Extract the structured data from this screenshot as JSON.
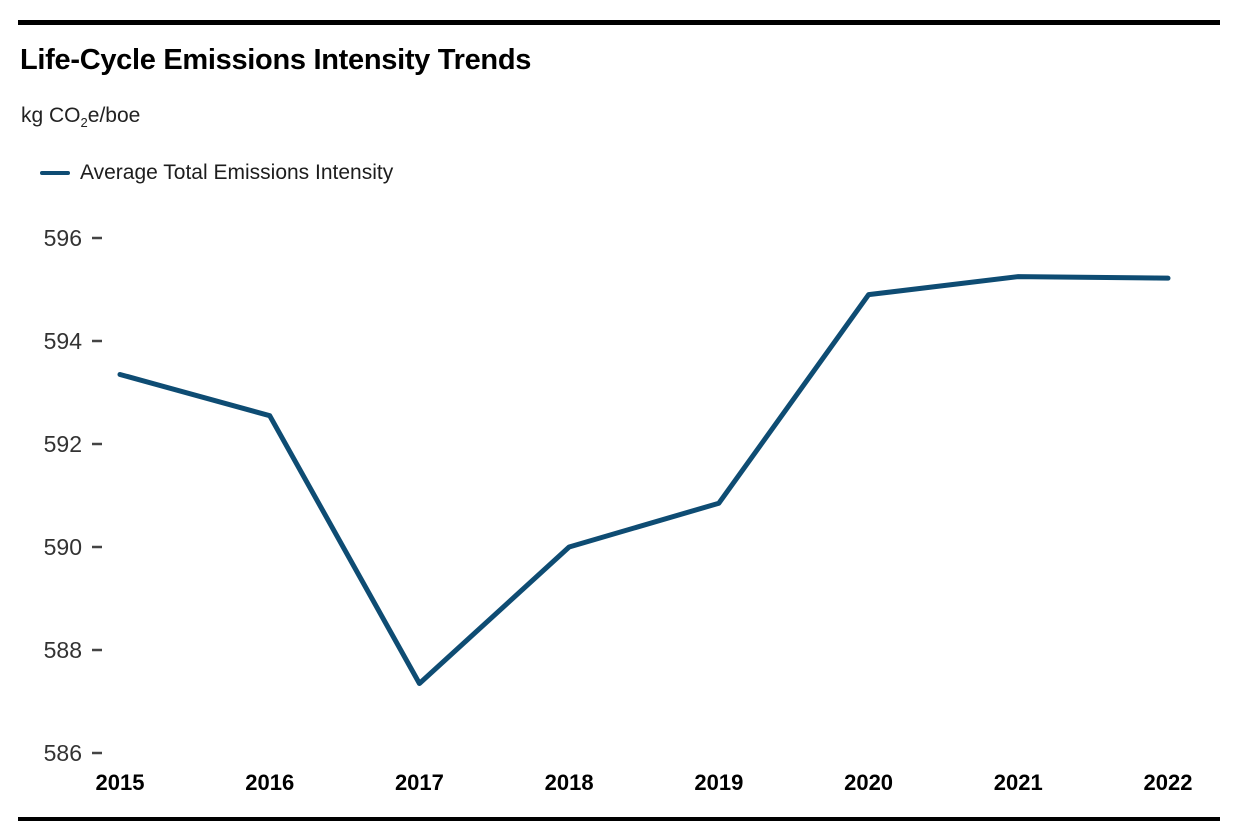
{
  "header": {
    "title": "Life-Cycle Emissions Intensity Trends",
    "unit_label": {
      "pre": "kg CO",
      "sub": "2",
      "post": "e/boe"
    }
  },
  "legend": {
    "series_label": "Average Total Emissions Intensity",
    "swatch_color": "#0e4c73"
  },
  "chart_data": {
    "type": "line",
    "title": "Life-Cycle Emissions Intensity Trends",
    "ylabel": "kg CO₂e/boe",
    "xlabel": "",
    "categories": [
      "2015",
      "2016",
      "2017",
      "2018",
      "2019",
      "2020",
      "2021",
      "2022"
    ],
    "series": [
      {
        "name": "Average Total Emissions Intensity",
        "color": "#0e4c73",
        "values": [
          593.35,
          592.55,
          587.35,
          590.0,
          590.85,
          594.9,
          595.25,
          595.22
        ]
      }
    ],
    "yticks": [
      586,
      588,
      590,
      592,
      594,
      596
    ],
    "ylim": [
      586,
      596
    ],
    "grid": "off",
    "legend_position": "top-left",
    "tick_style": "short-dash-left-axis"
  }
}
